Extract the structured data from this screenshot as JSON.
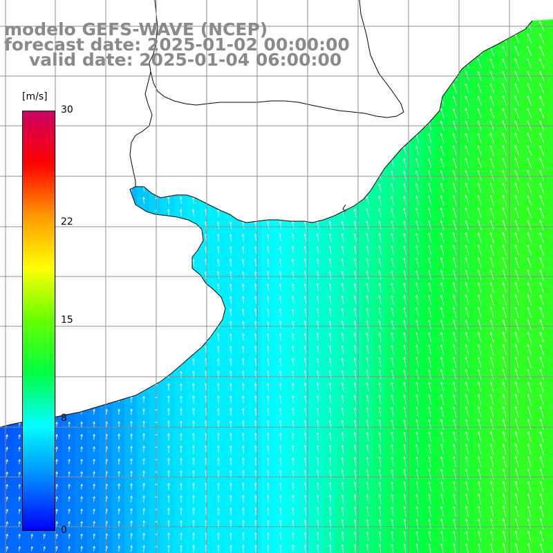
{
  "title": {
    "line1": "modelo GEFS-WAVE (NCEP)",
    "line2": "forecast date: 2025-01-02 00:00:00",
    "line3": "valid date: 2025-01-04 06:00:00"
  },
  "colorbar": {
    "unit": "[m/s]",
    "min": 0,
    "max": 30,
    "ticks": [
      {
        "value": 30,
        "label": "30"
      },
      {
        "value": 22,
        "label": "22"
      },
      {
        "value": 15,
        "label": "15"
      },
      {
        "value": 8,
        "label": "8"
      },
      {
        "value": 0,
        "label": "0"
      }
    ],
    "stops": [
      "#0000ff",
      "#0088ff",
      "#00ffff",
      "#00ff44",
      "#66ff00",
      "#ffff00",
      "#ff9900",
      "#ff0000",
      "#cc0066"
    ]
  },
  "map": {
    "land_color": "#ffffff",
    "grid_color": "#7f7f7f",
    "vector_color": "#ffffff",
    "field_description_speed_grid": [
      [
        2,
        3,
        4,
        5,
        6,
        6,
        7,
        8,
        9,
        11,
        12,
        13
      ],
      [
        2,
        3,
        4,
        6,
        7,
        7,
        8,
        9,
        10,
        12,
        13,
        13
      ],
      [
        2,
        3,
        4,
        6,
        7,
        7,
        8,
        9,
        11,
        12,
        13,
        13
      ],
      [
        3,
        3,
        4,
        6,
        7,
        7,
        8,
        10,
        11,
        12,
        13,
        13
      ]
    ]
  }
}
